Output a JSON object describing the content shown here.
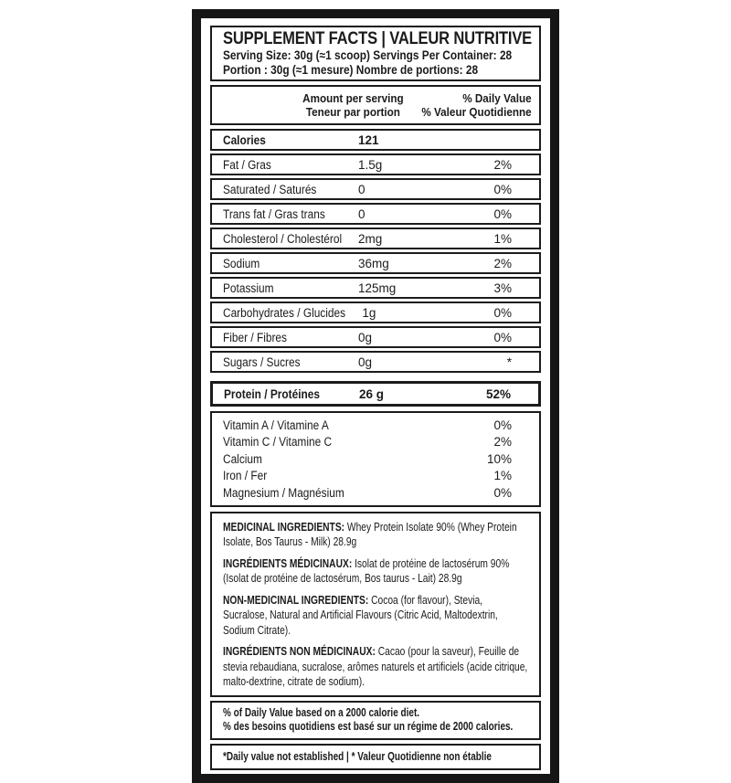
{
  "label": {
    "title": "SUPPLEMENT FACTS | VALEUR NUTRITIVE",
    "serving_line_en": "Serving Size: 30g (≈1 scoop) Servings Per Container: 28",
    "serving_line_fr": "Portion : 30g (≈1 mesure) Nombre de portions: 28",
    "columns": {
      "amount_en": "Amount per serving",
      "amount_fr": "Teneur par portion",
      "dv_en": "% Daily Value",
      "dv_fr": "% Valeur Quotidienne"
    },
    "rows": [
      {
        "label": "Calories",
        "amount": "121",
        "dv": ""
      },
      {
        "label": "Fat / Gras",
        "amount": "1.5g",
        "dv": "2%"
      },
      {
        "label": "Saturated / Saturés",
        "amount": "0",
        "dv": "0%"
      },
      {
        "label": "Trans fat / Gras trans",
        "amount": "0",
        "dv": "0%"
      },
      {
        "label": "Cholesterol / Cholestérol",
        "amount": "2mg",
        "dv": "1%"
      },
      {
        "label": "Sodium",
        "amount": "36mg",
        "dv": "2%"
      },
      {
        "label": "Potassium",
        "amount": "125mg",
        "dv": "3%"
      },
      {
        "label": "Carbohydrates / Glucides",
        "amount": "1g",
        "dv": "0%"
      },
      {
        "label": "Fiber / Fibres",
        "amount": "0g",
        "dv": "0%"
      },
      {
        "label": "Sugars / Sucres",
        "amount": "0g",
        "dv": "*"
      }
    ],
    "protein_row": {
      "label": "Protein / Protéines",
      "amount": "26 g",
      "dv": "52%"
    },
    "micronutrients": [
      {
        "label": "Vitamin A / Vitamine A",
        "dv": "0%"
      },
      {
        "label": "Vitamin C / Vitamine C",
        "dv": "2%"
      },
      {
        "label": "Calcium",
        "dv": "10%"
      },
      {
        "label": "Iron / Fer",
        "dv": "1%"
      },
      {
        "label": "Magnesium / Magnésium",
        "dv": "0%"
      }
    ],
    "ingredients": [
      {
        "heading": "MEDICINAL INGREDIENTS:",
        "text": "Whey Protein Isolate 90% (Whey Protein Isolate, Bos Taurus - Milk) 28.9g"
      },
      {
        "heading": "INGRÉDIENTS MÉDICINAUX:",
        "text": "Isolat de protéine de lactosérum 90% (Isolat de protéine de lactosérum, Bos taurus - Lait) 28.9g"
      },
      {
        "heading": "NON-MEDICINAL INGREDIENTS:",
        "text": "Cocoa (for flavour), Stevia, Sucralose, Natural and Artificial Flavours (Citric Acid, Maltodextrin, Sodium Citrate)."
      },
      {
        "heading": "INGRÉDIENTS NON MÉDICINAUX:",
        "text": "Cacao (pour la saveur), Feuille de stevia rebaudiana, sucralose, arômes naturels et artificiels (acide citrique, malto-dextrine, citrate de sodium)."
      }
    ],
    "footnotes": {
      "dv_basis_en": "% of Daily Value based on a 2000 calorie diet.",
      "dv_basis_fr": "% des besoins quotidiens est basé sur un régime de 2000 calories.",
      "not_established": "*Daily value not established | * Valeur Quotidienne non établie"
    },
    "colors": {
      "ink": "#1b1b1b",
      "frame": "#161616",
      "background": "#ffffff"
    }
  }
}
